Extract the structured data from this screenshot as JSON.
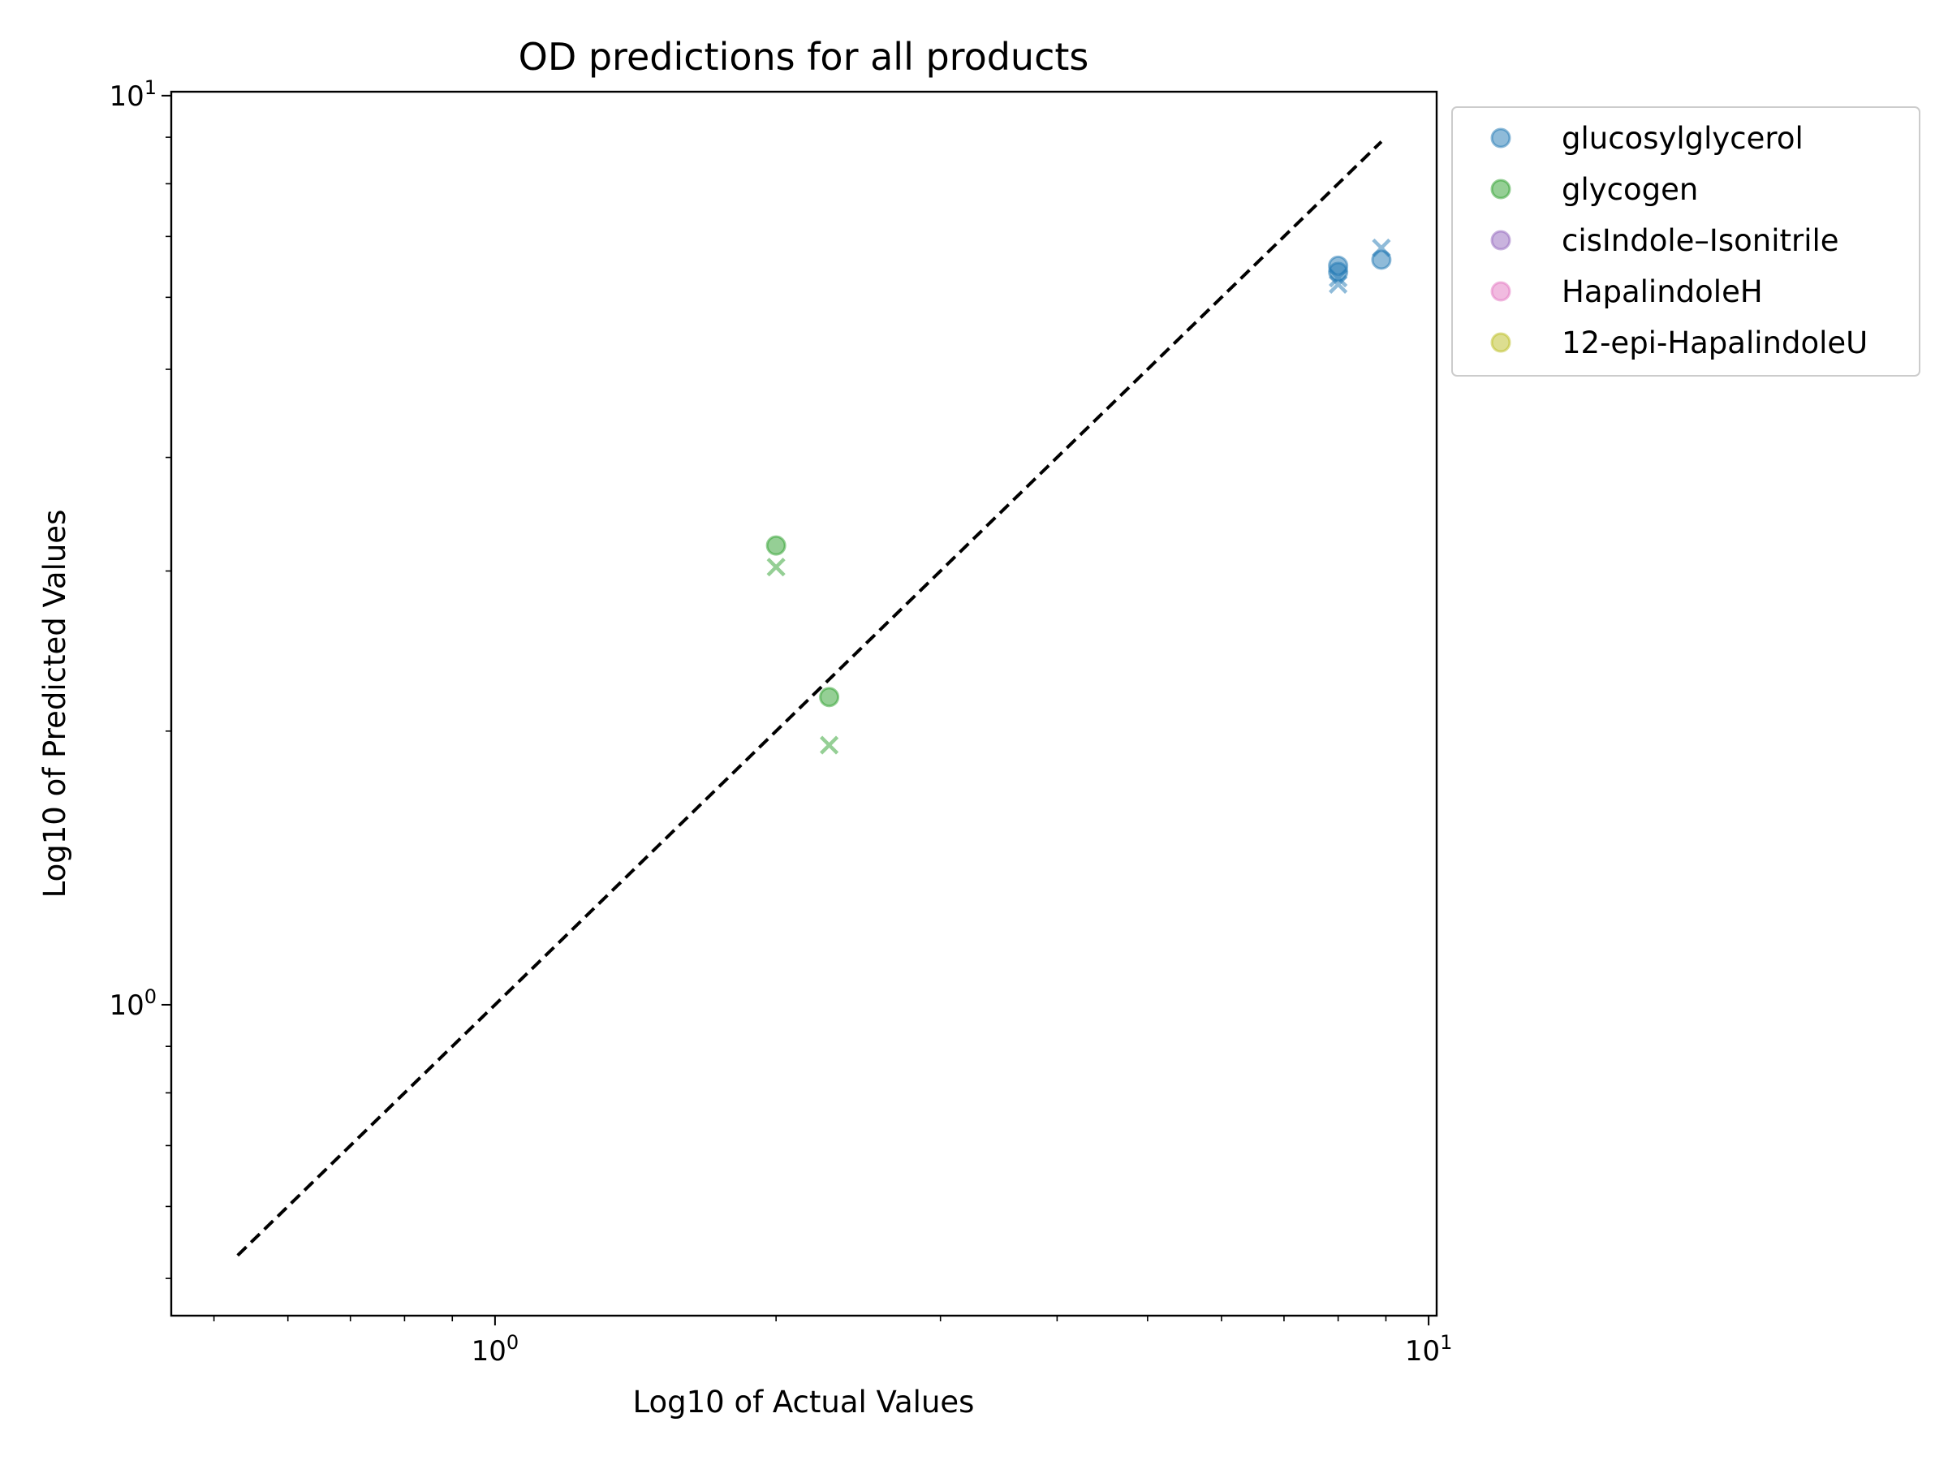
{
  "chart_data": {
    "type": "scatter",
    "title": "OD predictions for all products",
    "xlabel": "Log10 of Actual Values",
    "ylabel": "Log10 of Predicted Values",
    "xscale": "log",
    "yscale": "log",
    "xlim": [
      0.45,
      10.2
    ],
    "ylim": [
      0.455,
      10.1
    ],
    "grid": false,
    "legend_position": "outside upper right",
    "x_ticks": [
      {
        "base": "10",
        "exp": "0",
        "value": 1
      },
      {
        "base": "10",
        "exp": "1",
        "value": 10
      }
    ],
    "y_ticks": [
      {
        "base": "10",
        "exp": "0",
        "value": 1
      },
      {
        "base": "10",
        "exp": "1",
        "value": 10
      }
    ],
    "reference_line": {
      "style": "dashed",
      "color": "#000000",
      "from": [
        0.53,
        0.53
      ],
      "to": [
        8.9,
        8.9
      ]
    },
    "series": [
      {
        "name": "glucosylglycerol",
        "color": "#1f77b4",
        "actual": [
          [
            8.0,
            6.5
          ],
          [
            8.0,
            6.4
          ],
          [
            8.9,
            6.6
          ]
        ],
        "predicted": [
          [
            8.0,
            6.2
          ],
          [
            8.0,
            6.3
          ],
          [
            8.9,
            6.8
          ]
        ]
      },
      {
        "name": "glycogen",
        "color": "#2ca02c",
        "actual": [
          [
            2.0,
            3.2
          ],
          [
            2.28,
            2.18
          ]
        ],
        "predicted": [
          [
            2.0,
            3.03
          ],
          [
            2.28,
            1.93
          ]
        ]
      },
      {
        "name": "cisIndole–Isonitrile",
        "color": "#9467bd",
        "actual": [],
        "predicted": []
      },
      {
        "name": "HapalindoleH",
        "color": "#e377c2",
        "actual": [],
        "predicted": []
      },
      {
        "name": "12-epi-HapalindoleU",
        "color": "#bcbd22",
        "actual": [],
        "predicted": []
      }
    ]
  }
}
